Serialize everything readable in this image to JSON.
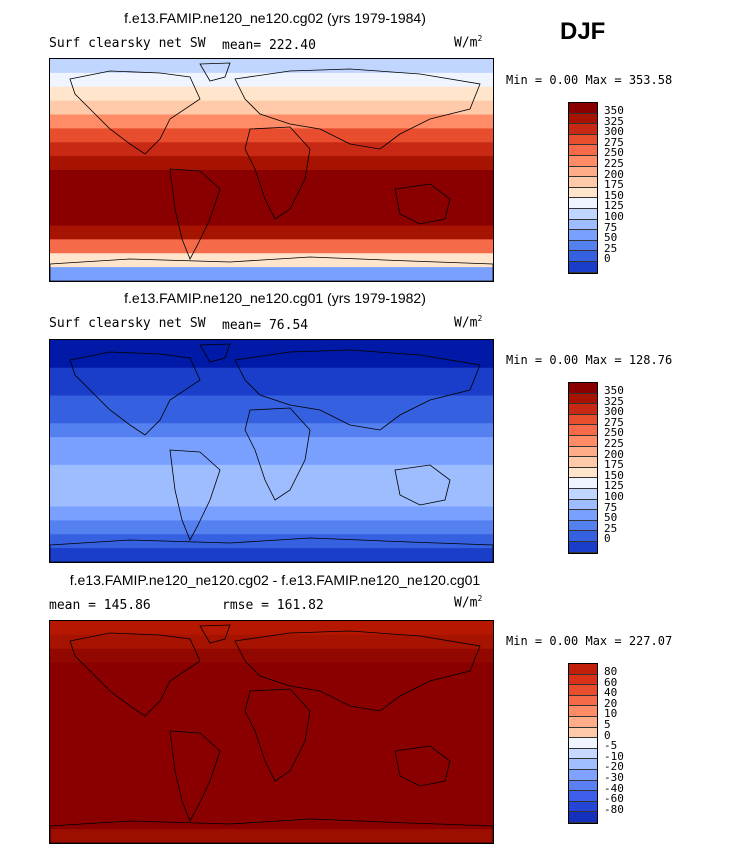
{
  "season": "DJF",
  "colors": {
    "pos": [
      "#FFE5CC",
      "#FFCAAA",
      "#FFAD88",
      "#FF8C66",
      "#F56B4A",
      "#E84E2E",
      "#D93218",
      "#C21F0A",
      "#A61300",
      "#8A0000"
    ],
    "neg": [
      "#F0F4FF",
      "#C6D8FF",
      "#A1BFFF",
      "#7FA2FF",
      "#5B80F5",
      "#3D5EEB",
      "#2545D6",
      "#1431BD",
      "#07209E",
      "#00107A"
    ],
    "abs": [
      "#000080",
      "#0019A6",
      "#1A3EC9",
      "#3560E0",
      "#5580F0",
      "#7AA0FF",
      "#9EBDFF",
      "#C1D6FF",
      "#F0F4FF",
      "#FFE5CC",
      "#FFCAAA",
      "#FFAD88",
      "#FF8C66",
      "#F56B4A",
      "#E84E2E",
      "#C82914",
      "#A61300",
      "#8A0000"
    ]
  },
  "panels": [
    {
      "title": "f.e13.FAMIP.ne120_ne120.cg02 (yrs 1979-1984)",
      "left_label": "Surf clearsky net SW",
      "stat_label": "mean=  222.40",
      "units": "W/m",
      "units_exp": "2",
      "minmax": "Min =    0.00 Max = 353.58",
      "ticks": [
        "350",
        "325",
        "300",
        "275",
        "250",
        "225",
        "200",
        "175",
        "150",
        "125",
        "100",
        "75",
        "50",
        "25",
        "0"
      ],
      "zonal_bands": [
        7,
        8,
        9,
        10,
        12,
        14,
        15,
        16,
        17,
        17,
        17,
        17,
        16,
        13,
        9,
        5
      ]
    },
    {
      "title": "f.e13.FAMIP.ne120_ne120.cg01 (yrs 1979-1982)",
      "left_label": "Surf clearsky net SW",
      "stat_label": "mean=   76.54",
      "units": "W/m",
      "units_exp": "2",
      "minmax": "Min =    0.00 Max = 128.76",
      "ticks": [
        "350",
        "325",
        "300",
        "275",
        "250",
        "225",
        "200",
        "175",
        "150",
        "125",
        "100",
        "75",
        "50",
        "25",
        "0"
      ],
      "zonal_bands": [
        1,
        1,
        2,
        2,
        3,
        3,
        4,
        5,
        5,
        6,
        6,
        6,
        5,
        4,
        3,
        2
      ]
    },
    {
      "title": "f.e13.FAMIP.ne120_ne120.cg02 - f.e13.FAMIP.ne120_ne120.cg01",
      "left_label": "mean = 145.86",
      "stat_label": "rmse = 161.82",
      "units": "W/m",
      "units_exp": "2",
      "minmax": "Min =    0.00 Max = 227.07",
      "ticks": [
        "80",
        "60",
        "40",
        "20",
        "10",
        "5",
        "0",
        "-5",
        "-10",
        "-20",
        "-30",
        "-40",
        "-60",
        "-80"
      ],
      "zonal_bands": [
        9,
        10,
        12,
        14,
        15,
        16,
        17,
        17,
        17,
        17,
        17,
        17,
        17,
        16,
        14,
        11
      ]
    }
  ]
}
